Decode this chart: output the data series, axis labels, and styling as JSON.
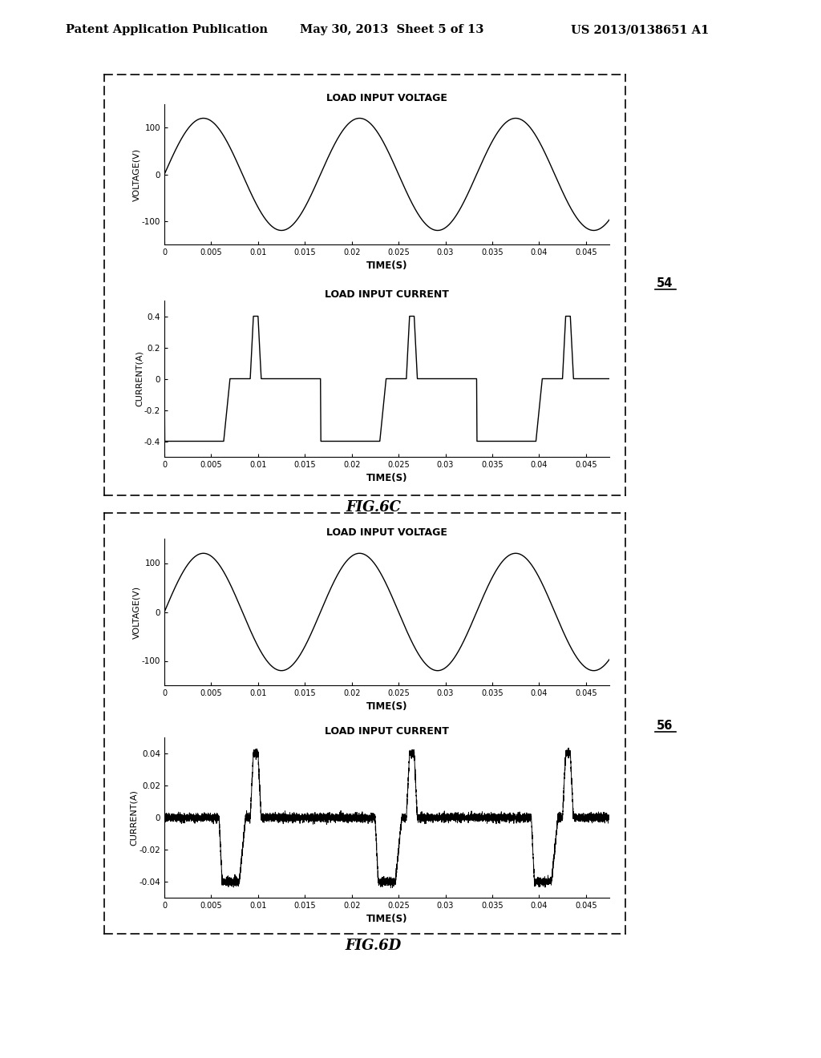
{
  "header_left": "Patent Application Publication",
  "header_mid": "May 30, 2013  Sheet 5 of 13",
  "header_right": "US 2013/0138651 A1",
  "fig6c_label": "FIG.6C",
  "fig6d_label": "FIG.6D",
  "ref54": "54",
  "ref56": "56",
  "voltage_title": "LOAD INPUT VOLTAGE",
  "current_title": "LOAD INPUT CURRENT",
  "voltage_ylabel": "VOLTAGE(V)",
  "current_ylabel": "CURRENT(A)",
  "xlabel": "TIME(S)",
  "voltage_yticks": [
    -100,
    0,
    100
  ],
  "current6c_yticks": [
    -0.4,
    -0.2,
    0,
    0.2,
    0.4
  ],
  "current6d_yticks": [
    -0.04,
    -0.02,
    0,
    0.02,
    0.04
  ],
  "xticks": [
    0,
    0.005,
    0.01,
    0.015,
    0.02,
    0.025,
    0.03,
    0.035,
    0.04,
    0.045
  ],
  "xlim": [
    0,
    0.0475
  ],
  "voltage_ylim": [
    -150,
    150
  ],
  "current6c_ylim": [
    -0.5,
    0.5
  ],
  "current6d_ylim": [
    -0.05,
    0.05
  ],
  "freq": 60,
  "amplitude": 120,
  "background_color": "#ffffff",
  "line_color": "#000000"
}
